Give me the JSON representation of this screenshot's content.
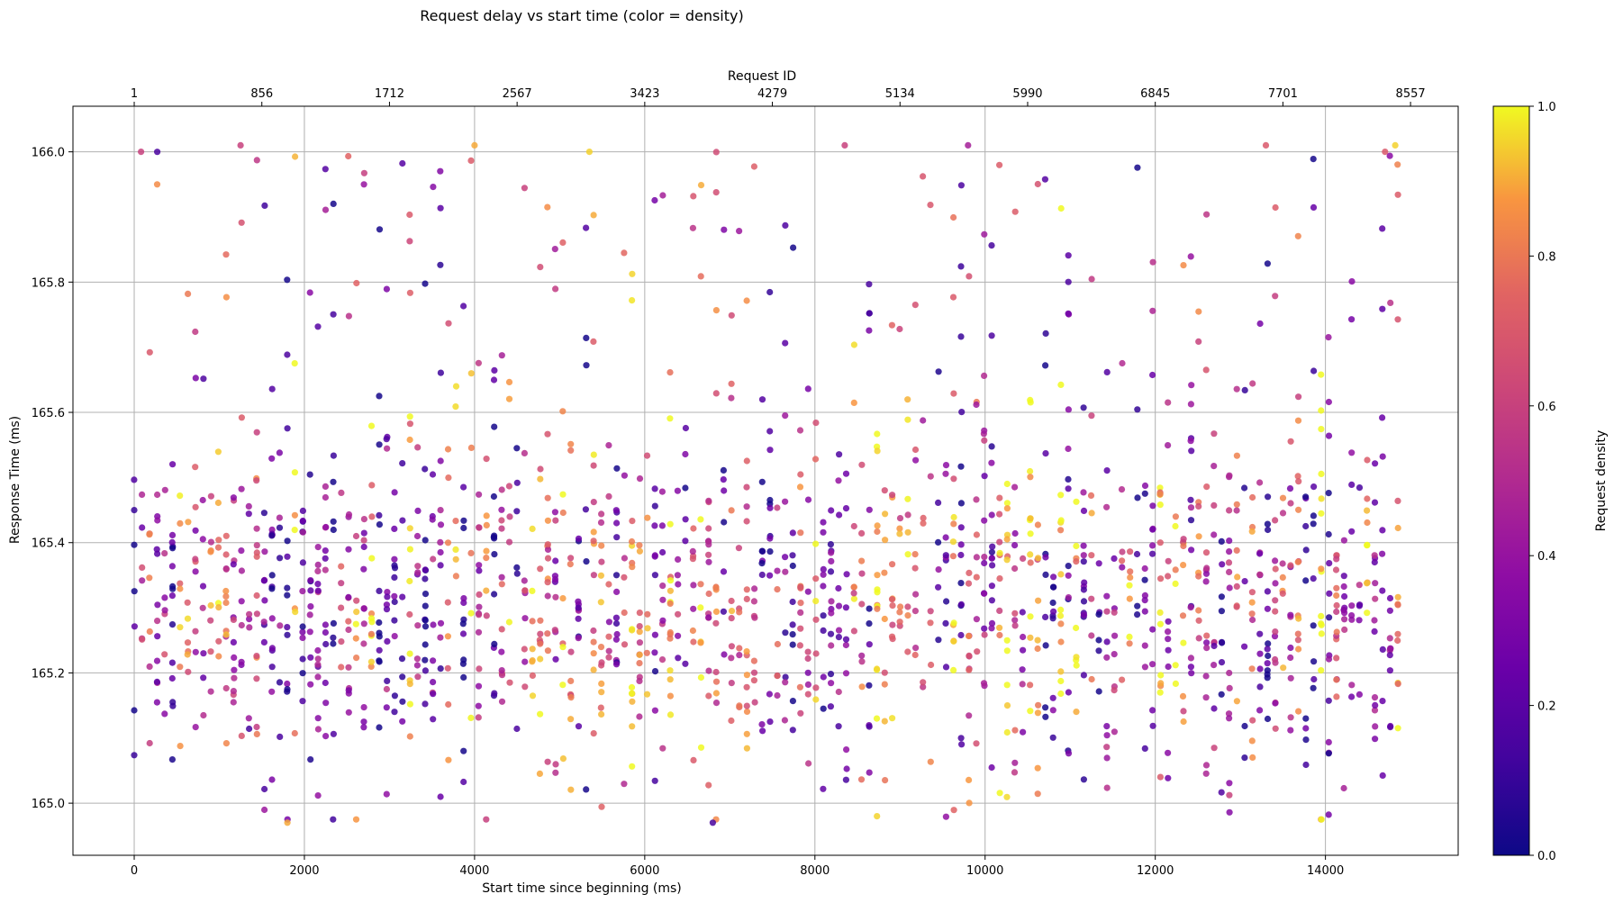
{
  "chart_data": {
    "type": "scatter",
    "title": "Request delay vs start time (color = density)",
    "xlabel": "Start time since beginning (ms)",
    "ylabel": "Response Time (ms)",
    "x2label": "Request ID",
    "xlim": [
      -720,
      15560
    ],
    "ylim": [
      164.92,
      166.07
    ],
    "xticks": [
      0,
      2000,
      4000,
      6000,
      8000,
      10000,
      12000,
      14000
    ],
    "yticks": [
      165.0,
      165.2,
      165.4,
      165.6,
      165.8,
      166.0
    ],
    "yticklabels": [
      "165.0",
      "165.2",
      "165.4",
      "165.6",
      "165.8",
      "166.0"
    ],
    "x2ticks": [
      1,
      856,
      1712,
      2567,
      3423,
      4279,
      5134,
      5990,
      6845,
      7701,
      8557
    ],
    "x2tick_positions": [
      0,
      1500,
      3000,
      4500,
      6000,
      7500,
      9000,
      10500,
      12000,
      13500,
      15000
    ],
    "grid": true,
    "colormap": "plasma",
    "colorbar": {
      "label": "Request density",
      "range": [
        0.0,
        1.0
      ],
      "ticks": [
        0.0,
        0.2,
        0.4,
        0.6,
        0.8,
        1.0
      ],
      "ticklabels": [
        "0.0",
        "0.2",
        "0.4",
        "0.6",
        "0.8",
        "1.0"
      ]
    },
    "x_range": [
      0,
      14850
    ],
    "column_spacing_ms": 90,
    "y_center": 165.3,
    "point_count_approx": 8557,
    "sample_points": [
      {
        "x": 0,
        "y": 165.45,
        "c": 0.1
      },
      {
        "x": 80,
        "y": 166.0,
        "c": 0.6
      },
      {
        "x": 270,
        "y": 165.95,
        "c": 0.85
      },
      {
        "x": 1250,
        "y": 166.01,
        "c": 0.6
      },
      {
        "x": 1800,
        "y": 164.97,
        "c": 0.9
      },
      {
        "x": 2700,
        "y": 165.95,
        "c": 0.4
      },
      {
        "x": 4000,
        "y": 166.01,
        "c": 0.9
      },
      {
        "x": 5350,
        "y": 166.0,
        "c": 0.95
      },
      {
        "x": 6800,
        "y": 164.97,
        "c": 0.15
      },
      {
        "x": 8350,
        "y": 166.01,
        "c": 0.6
      },
      {
        "x": 9800,
        "y": 166.01,
        "c": 0.45
      },
      {
        "x": 13300,
        "y": 166.01,
        "c": 0.7
      },
      {
        "x": 14700,
        "y": 166.0,
        "c": 0.7
      },
      {
        "x": 14820,
        "y": 166.01,
        "c": 0.95
      }
    ]
  }
}
